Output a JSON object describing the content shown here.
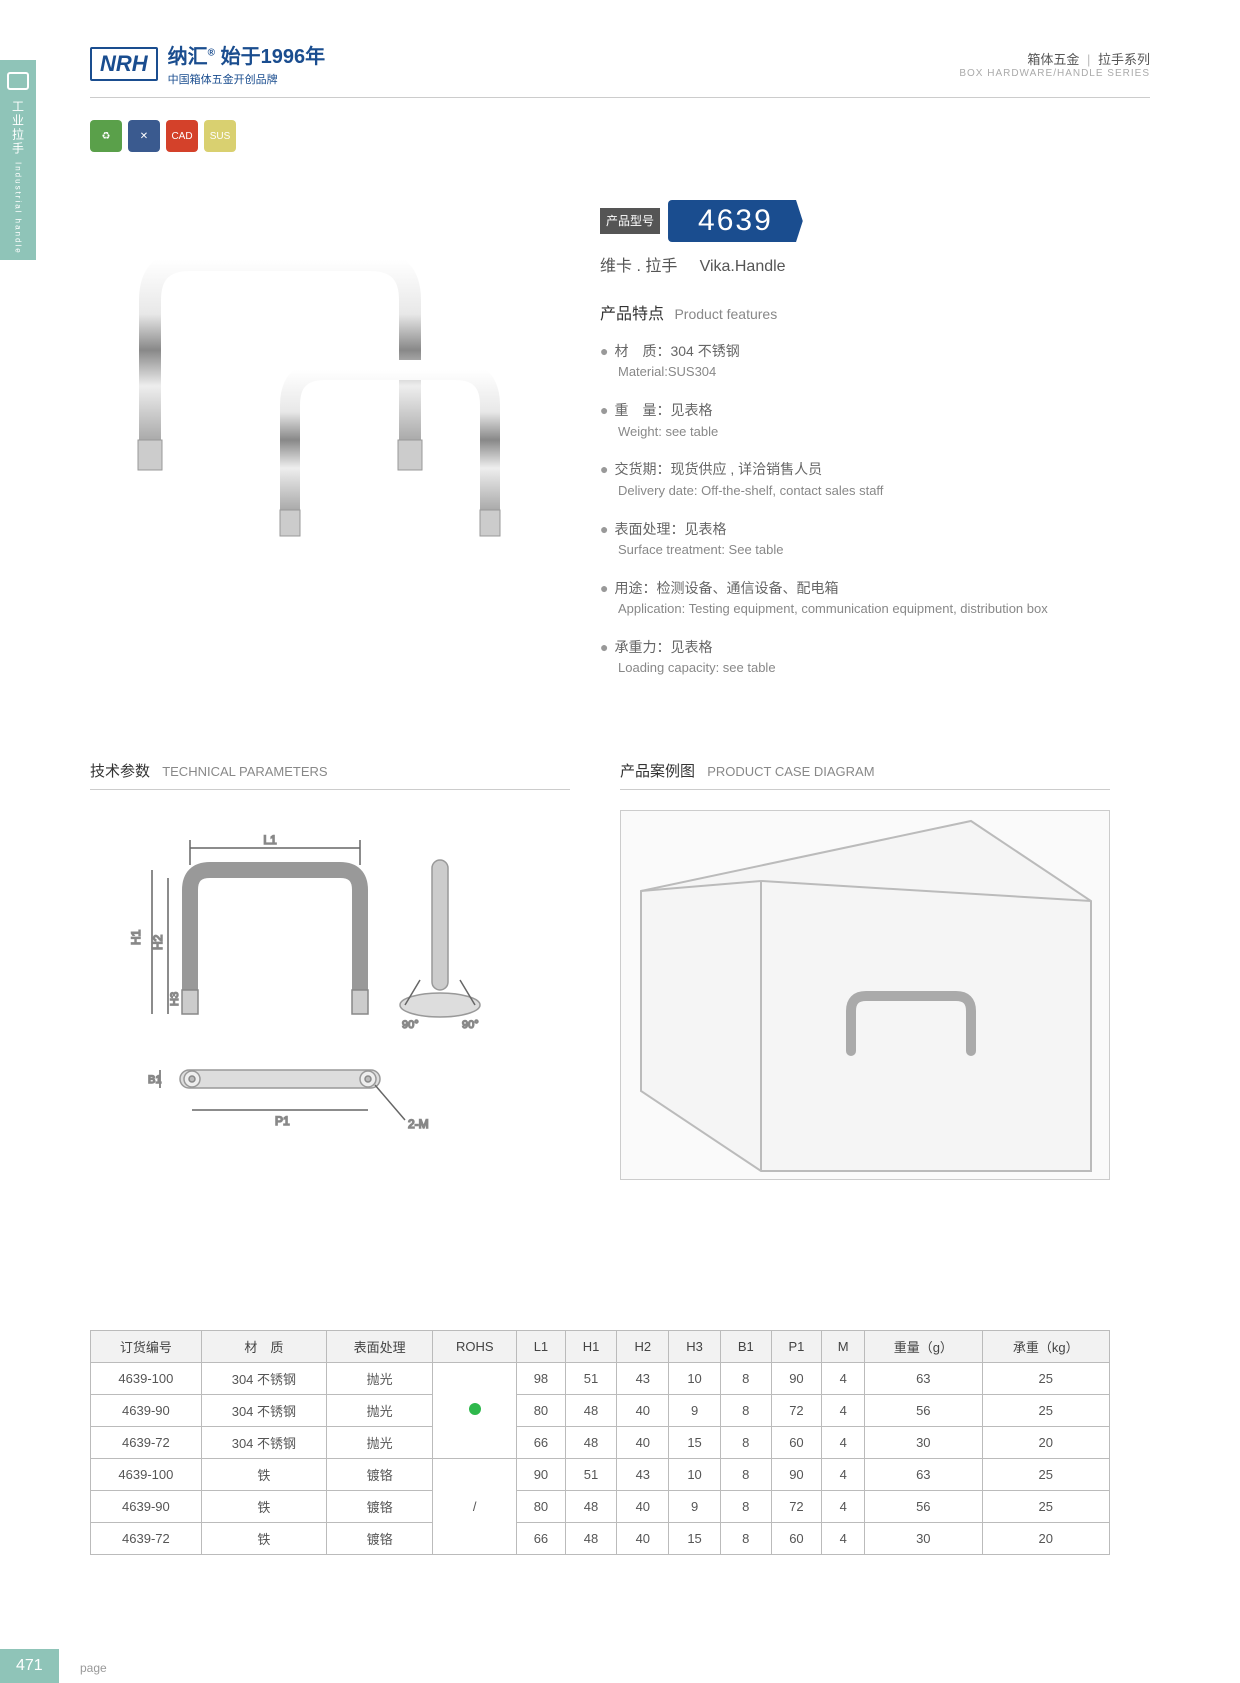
{
  "sidebar": {
    "cn": "工业拉手",
    "en": "Industrial handle"
  },
  "header": {
    "logo_mark": "NRH",
    "brand": "纳汇",
    "since": "始于1996年",
    "tagline": "中国箱体五金开创品牌",
    "category_cn1": "箱体五金",
    "category_cn2": "拉手系列",
    "category_en": "BOX HARDWARE/HANDLE SERIES"
  },
  "icons": {
    "colors": [
      "#5aa04a",
      "#3a5a8f",
      "#d4412a",
      "#d9d070"
    ],
    "labels": [
      "♻",
      "✕",
      "CAD",
      "SUS"
    ]
  },
  "model": {
    "label": "产品型号",
    "number": "4639",
    "name_cn": "维卡 . 拉手",
    "name_en": "Vika.Handle"
  },
  "features": {
    "title_cn": "产品特点",
    "title_en": "Product features",
    "items": [
      {
        "cn": "材　质：304 不锈钢",
        "en": "Material:SUS304"
      },
      {
        "cn": "重　量：见表格",
        "en": "Weight: see table"
      },
      {
        "cn": "交货期：现货供应 , 详洽销售人员",
        "en": "Delivery date: Off-the-shelf, contact sales staff"
      },
      {
        "cn": "表面处理：见表格",
        "en": "Surface treatment: See table"
      },
      {
        "cn": "用途：检测设备、通信设备、配电箱",
        "en": "Application: Testing equipment, communication equipment, distribution box"
      },
      {
        "cn": "承重力：见表格",
        "en": "Loading capacity: see table"
      }
    ]
  },
  "tech": {
    "title_cn": "技术参数",
    "title_en": "TECHNICAL PARAMETERS",
    "labels": {
      "L1": "L1",
      "H1": "H1",
      "H2": "H2",
      "H3": "H3",
      "B1": "B1",
      "P1": "P1",
      "M": "2-M",
      "ang": "90°"
    }
  },
  "case": {
    "title_cn": "产品案例图",
    "title_en": "PRODUCT CASE DIAGRAM"
  },
  "table": {
    "headers": [
      "订货编号",
      "材　质",
      "表面处理",
      "ROHS",
      "L1",
      "H1",
      "H2",
      "H3",
      "B1",
      "P1",
      "M",
      "重量（g）",
      "承重（kg）"
    ],
    "rohs_groups": [
      "dot",
      "/"
    ],
    "rows": [
      [
        "4639-100",
        "304 不锈钢",
        "抛光",
        "",
        "98",
        "51",
        "43",
        "10",
        "8",
        "90",
        "4",
        "63",
        "25"
      ],
      [
        "4639-90",
        "304 不锈钢",
        "抛光",
        "",
        "80",
        "48",
        "40",
        "9",
        "8",
        "72",
        "4",
        "56",
        "25"
      ],
      [
        "4639-72",
        "304 不锈钢",
        "抛光",
        "",
        "66",
        "48",
        "40",
        "15",
        "8",
        "60",
        "4",
        "30",
        "20"
      ],
      [
        "4639-100",
        "铁",
        "镀铬",
        "",
        "90",
        "51",
        "43",
        "10",
        "8",
        "90",
        "4",
        "63",
        "25"
      ],
      [
        "4639-90",
        "铁",
        "镀铬",
        "",
        "80",
        "48",
        "40",
        "9",
        "8",
        "72",
        "4",
        "56",
        "25"
      ],
      [
        "4639-72",
        "铁",
        "镀铬",
        "",
        "66",
        "48",
        "40",
        "15",
        "8",
        "60",
        "4",
        "30",
        "20"
      ]
    ]
  },
  "page": {
    "number": "471",
    "label": "page"
  }
}
